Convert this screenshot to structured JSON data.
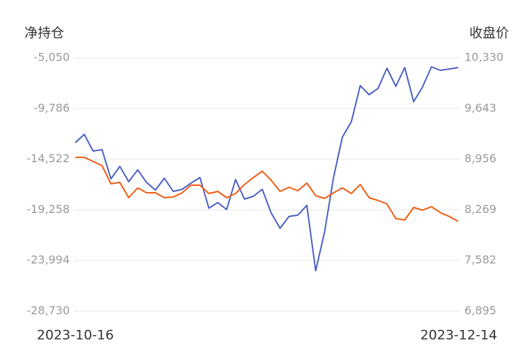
{
  "chart_data": {
    "type": "line",
    "y_label": "净持仓",
    "y2_label": "收盘价",
    "categories": [
      "2023-10-16",
      null,
      null,
      null,
      null,
      null,
      null,
      null,
      null,
      null,
      null,
      null,
      null,
      null,
      null,
      null,
      null,
      null,
      null,
      null,
      null,
      null,
      null,
      null,
      null,
      null,
      null,
      null,
      null,
      null,
      null,
      null,
      null,
      null,
      null,
      null,
      null,
      null,
      null,
      null,
      null,
      null,
      null,
      "2023-12-14"
    ],
    "series": [
      {
        "name": "净持仓",
        "color": "#4a5fc1",
        "axis": "y",
        "values": [
          -12986,
          -12206,
          -13767,
          -13637,
          -16369,
          -15198,
          -16629,
          -15523,
          -16694,
          -17410,
          -16304,
          -17540,
          -17344,
          -16759,
          -16239,
          -19101,
          -18580,
          -19231,
          -16434,
          -18255,
          -17995,
          -17344,
          -19556,
          -20987,
          -19881,
          -19751,
          -18841,
          -24955,
          -21313,
          -16239,
          -12466,
          -11035,
          -7652,
          -8498,
          -7912,
          -6026,
          -7717,
          -5961,
          -9148,
          -7782,
          -5896,
          -6221,
          -6100,
          -5961
        ]
      },
      {
        "name": "收盘价",
        "color": "#f05a0f",
        "axis": "y2",
        "values": [
          8981,
          8981,
          8924,
          8867,
          8622,
          8641,
          8433,
          8565,
          8499,
          8499,
          8433,
          8443,
          8499,
          8603,
          8603,
          8490,
          8518,
          8433,
          8490,
          8612,
          8707,
          8792,
          8669,
          8518,
          8575,
          8528,
          8631,
          8461,
          8424,
          8499,
          8565,
          8490,
          8612,
          8433,
          8395,
          8348,
          8150,
          8131,
          8301,
          8263,
          8311,
          8230,
          8178,
          8112
        ]
      }
    ],
    "ylim": [
      -28730,
      -5050
    ],
    "yticks": [
      {
        "value": -28730,
        "label": "-28,730"
      },
      {
        "value": -23994,
        "label": "-23,994"
      },
      {
        "value": -19258,
        "label": "-19,258"
      },
      {
        "value": -14522,
        "label": "-14,522"
      },
      {
        "value": -9786,
        "label": "-9,786"
      },
      {
        "value": -5050,
        "label": "-5,050"
      }
    ],
    "y2lim": [
      6895,
      10330
    ],
    "y2ticks": [
      {
        "value": 6895,
        "label": "6,895"
      },
      {
        "value": 7582,
        "label": "7,582"
      },
      {
        "value": 8269,
        "label": "8,269"
      },
      {
        "value": 8956,
        "label": "8,956"
      },
      {
        "value": 9643,
        "label": "9,643"
      },
      {
        "value": 10330,
        "label": "10,330"
      }
    ],
    "grid": true
  }
}
